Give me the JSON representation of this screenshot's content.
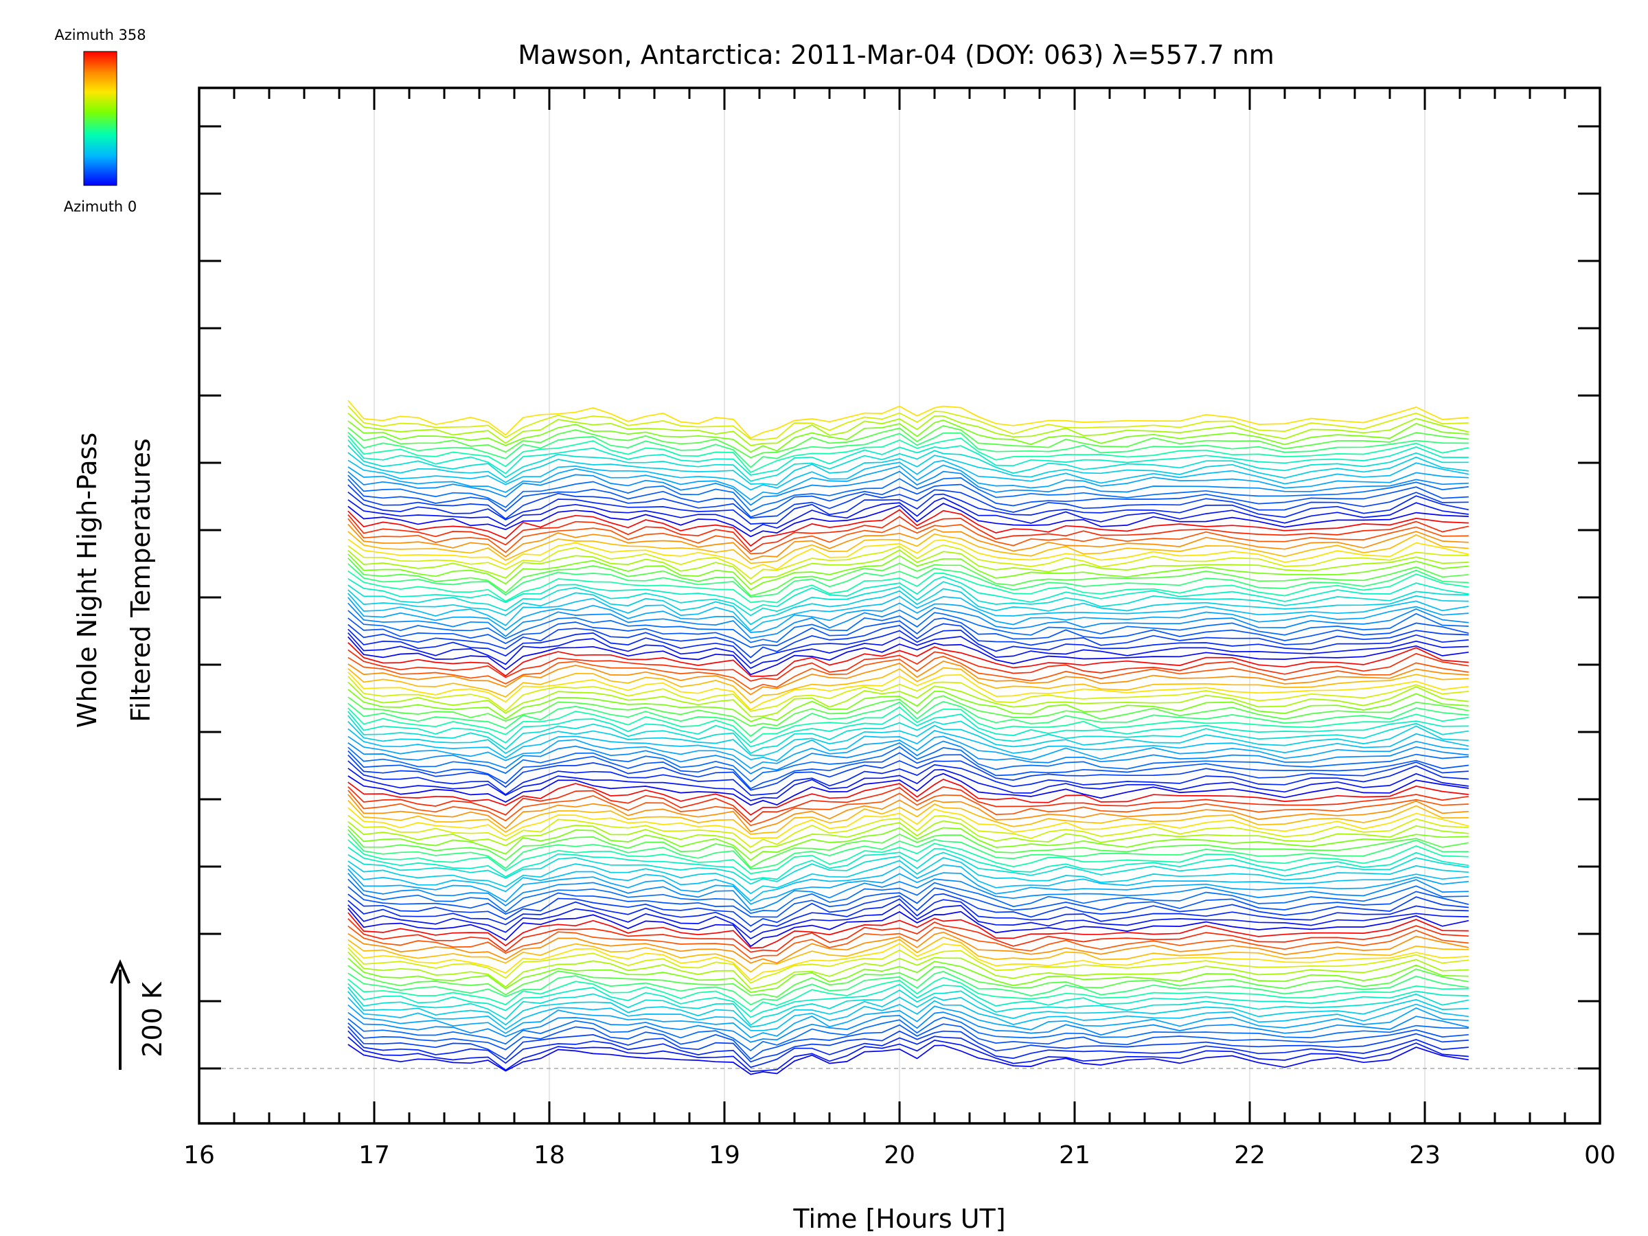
{
  "chart_data": {
    "type": "line",
    "title": "Mawson, Antarctica: 2011-Mar-04 (DOY: 063) λ=557.7 nm",
    "xlabel": "Time [Hours UT]",
    "ylabel_line1": "Whole Night High-Pass",
    "ylabel_line2": "Filtered Temperatures",
    "scale_label": "200 K",
    "colorbar": {
      "top_label": "Azimuth 358",
      "bottom_label": "Azimuth 0",
      "colormap": "rainbow",
      "range": [
        0,
        358
      ]
    },
    "xlim": [
      16,
      24
    ],
    "x_ticks": [
      "16",
      "17",
      "18",
      "19",
      "20",
      "21",
      "22",
      "23",
      "00"
    ],
    "grid": "vertical gridlines at whole hours",
    "baseline": "dashed gray line at the baseline of the lowest trace",
    "n_stacked_series": 115,
    "series_cycle": "azimuth sweeps 0→358 within each of several zenith-angle groups, stacked upward",
    "time_hours": [
      16.85,
      16.94,
      17.05,
      17.15,
      17.25,
      17.35,
      17.45,
      17.55,
      17.65,
      17.75,
      17.85,
      17.95,
      18.05,
      18.15,
      18.25,
      18.35,
      18.45,
      18.55,
      18.65,
      18.75,
      18.85,
      18.95,
      19.05,
      19.15,
      19.22,
      19.3,
      19.4,
      19.5,
      19.6,
      19.7,
      19.8,
      19.9,
      20.0,
      20.1,
      20.2,
      20.25,
      20.35,
      20.45,
      20.55,
      20.65,
      20.75,
      20.85,
      20.95,
      21.05,
      21.15,
      21.3,
      21.45,
      21.6,
      21.75,
      21.9,
      22.05,
      22.2,
      22.35,
      22.5,
      22.65,
      22.8,
      22.95,
      23.1,
      23.25
    ],
    "representative_bottom_trace_K": [
      30,
      -8,
      -10,
      -14,
      -16,
      -20,
      -18,
      -20,
      -22,
      -50,
      -14,
      -10,
      8,
      12,
      10,
      -2,
      -12,
      -6,
      -6,
      -20,
      -20,
      -14,
      -20,
      -64,
      -50,
      -48,
      -20,
      -8,
      -22,
      -14,
      4,
      6,
      22,
      -8,
      20,
      26,
      18,
      -10,
      -26,
      -30,
      -28,
      -22,
      -16,
      -20,
      -26,
      -22,
      -14,
      -18,
      -8,
      -10,
      -22,
      -30,
      -20,
      -14,
      -18,
      -10,
      16,
      -6,
      -8
    ]
  }
}
